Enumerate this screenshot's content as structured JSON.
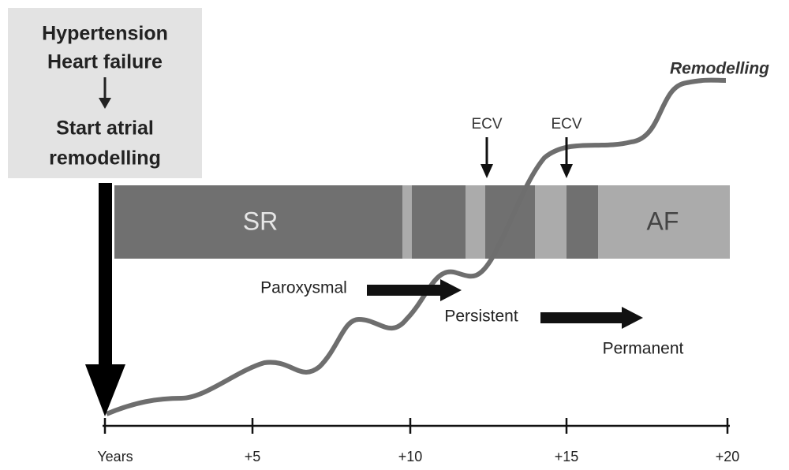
{
  "box": {
    "lines": [
      "Hypertension",
      "Heart failure",
      "Start atrial",
      "remodelling"
    ]
  },
  "curve_label": "Remodelling",
  "ecv": [
    "ECV",
    "ECV"
  ],
  "bar": {
    "start": "SR",
    "end": "AF"
  },
  "phases": [
    "Paroxysmal",
    "Persistent",
    "Permanent"
  ],
  "axis": {
    "labels": [
      "Years",
      "+5",
      "+10",
      "+15",
      "+20"
    ]
  }
}
